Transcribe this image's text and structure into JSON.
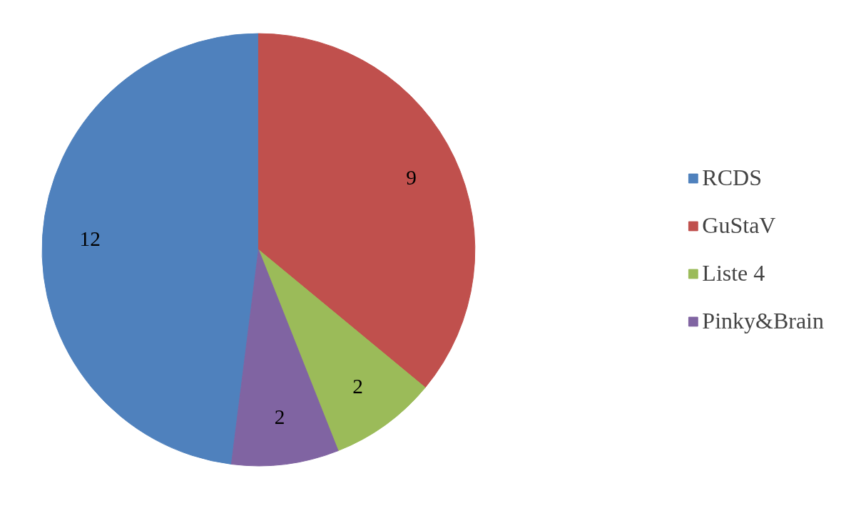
{
  "chart_data": {
    "type": "pie",
    "categories": [
      "RCDS",
      "GuStaV",
      "Liste 4",
      "Pinky&Brain"
    ],
    "values": [
      12,
      9,
      2,
      2
    ],
    "colors": [
      "#4f81bd",
      "#c0504d",
      "#9bbb59",
      "#8064a2"
    ],
    "data_labels": true,
    "legend": "right"
  }
}
